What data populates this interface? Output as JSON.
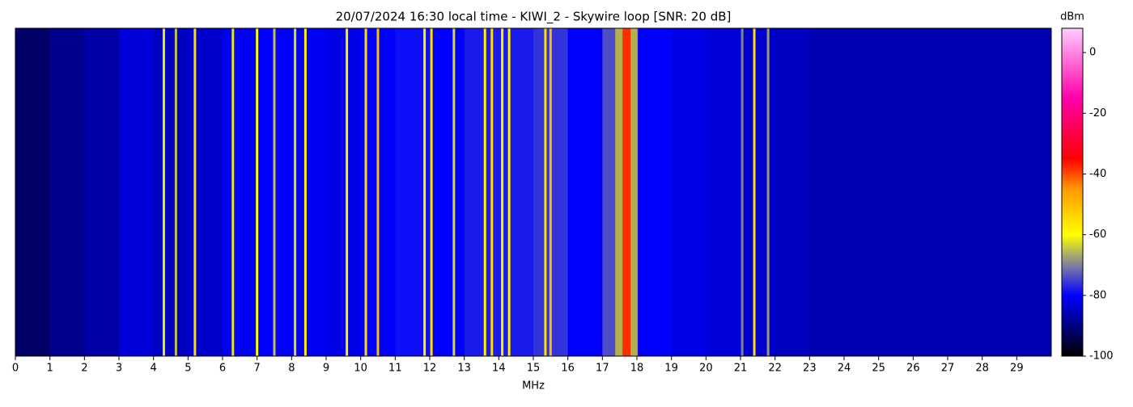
{
  "chart_data": {
    "type": "spectrogram",
    "title": "20/07/2024 16:30 local time - KIWI_2 - Skywire loop [SNR: 20 dB]",
    "x_label": "MHz",
    "colorbar_label": "dBm",
    "xlim": [
      0,
      30
    ],
    "xticks": [
      0,
      1,
      2,
      3,
      4,
      5,
      6,
      7,
      8,
      9,
      10,
      11,
      12,
      13,
      14,
      15,
      16,
      17,
      18,
      19,
      20,
      21,
      22,
      23,
      24,
      25,
      26,
      27,
      28,
      29
    ],
    "clim": [
      -100,
      8
    ],
    "cticks": [
      0,
      -20,
      -40,
      -60,
      -80,
      -100
    ],
    "colormap": [
      {
        "value": -100,
        "color": "#000000"
      },
      {
        "value": -80,
        "color": "#0000ff"
      },
      {
        "value": -70,
        "color": "#8080a0"
      },
      {
        "value": -60,
        "color": "#ffff00"
      },
      {
        "value": -45,
        "color": "#ff9900"
      },
      {
        "value": -35,
        "color": "#ff0000"
      },
      {
        "value": -15,
        "color": "#ff00aa"
      },
      {
        "value": 8,
        "color": "#ffccff"
      }
    ],
    "bands": {
      "x": [
        0,
        1,
        2,
        3,
        4,
        5,
        6,
        7,
        8,
        9,
        10,
        11,
        12,
        13,
        14,
        15,
        16,
        17,
        18,
        19,
        20,
        21,
        22,
        23,
        24,
        25,
        26,
        27,
        28,
        29
      ],
      "values": [
        -92,
        -89,
        -87,
        -83,
        -85,
        -84,
        -81,
        -80,
        -81,
        -82,
        -80,
        -79,
        -80,
        -78,
        -78,
        -76,
        -80,
        -74,
        -80,
        -82,
        -83,
        -84,
        -85,
        -86,
        -86,
        -86,
        -86,
        -86,
        -86,
        -86
      ]
    },
    "signals": {
      "x": [
        4.3,
        4.65,
        5.2,
        6.3,
        7.0,
        7.5,
        8.1,
        8.4,
        9.6,
        10.15,
        10.5,
        11.85,
        12.05,
        12.7,
        13.6,
        13.8,
        14.1,
        14.3,
        15.35,
        15.5,
        17.7,
        21.05,
        21.4,
        21.8
      ],
      "values": [
        -62,
        -65,
        -55,
        -62,
        -60,
        -65,
        -63,
        -58,
        -58,
        -55,
        -50,
        -58,
        -55,
        -63,
        -58,
        -55,
        -57,
        -58,
        -55,
        -50,
        -38,
        -70,
        -55,
        -68
      ]
    }
  }
}
